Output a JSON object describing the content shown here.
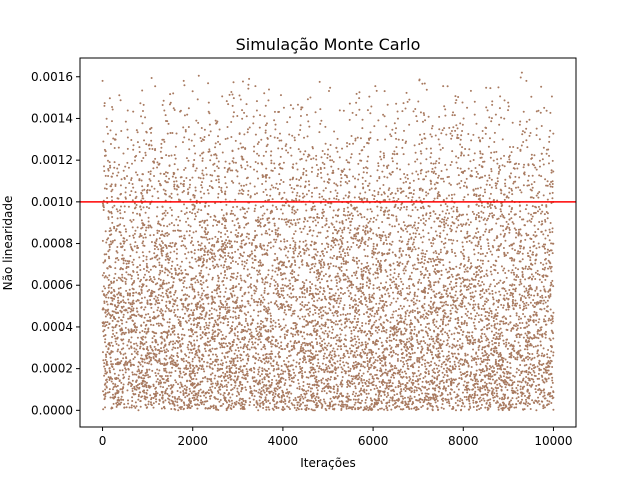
{
  "chart_data": {
    "type": "scatter",
    "title": "Simulação Monte Carlo",
    "xlabel": "Iterações",
    "ylabel": "Não linearidade",
    "xlim": [
      -500,
      10500
    ],
    "ylim": [
      -8e-05,
      0.00169
    ],
    "x_ticks": [
      0,
      2000,
      4000,
      6000,
      8000,
      10000
    ],
    "x_tick_labels": [
      "0",
      "2000",
      "4000",
      "6000",
      "8000",
      "10000"
    ],
    "y_ticks": [
      0.0,
      0.0002,
      0.0004,
      0.0006,
      0.0008,
      0.001,
      0.0012,
      0.0014,
      0.0016
    ],
    "y_tick_labels": [
      "0.0000",
      "0.0002",
      "0.0004",
      "0.0006",
      "0.0008",
      "0.0010",
      "0.0012",
      "0.0014",
      "0.0016"
    ],
    "threshold": {
      "y": 0.001,
      "color": "#ff0000"
    },
    "series": [
      {
        "n_points": 10000,
        "x_range": [
          0,
          10000
        ],
        "y_range": [
          0,
          0.00162
        ],
        "color": "#a87a60",
        "distribution": "dense near 0, thinning toward 0.0016",
        "sample_extremes": [
          [
            0,
            0.00158
          ],
          [
            3250,
            0.00159
          ],
          [
            9300,
            0.00162
          ],
          [
            9400,
            0.00158
          ],
          [
            1800,
            0.00158
          ]
        ]
      }
    ],
    "grid": false,
    "legend": "none"
  }
}
